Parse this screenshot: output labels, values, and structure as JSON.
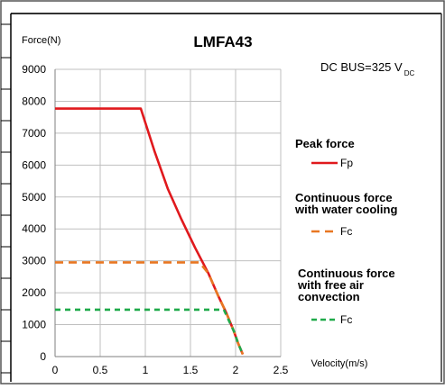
{
  "chart_data": {
    "type": "line",
    "title": "LMFA43",
    "ylabel": "Force(N)",
    "xlabel": "Velocity(m/s)",
    "annotation": {
      "text": "DC BUS=325 V",
      "subscript": "DC"
    },
    "xlim": [
      0,
      2.5
    ],
    "ylim": [
      0,
      9000
    ],
    "xticks": [
      0,
      0.5,
      1,
      1.5,
      2,
      2.5
    ],
    "yticks": [
      0,
      1000,
      2000,
      3000,
      4000,
      5000,
      6000,
      7000,
      8000,
      9000
    ],
    "xtick_labels": [
      "0",
      "0.5",
      "1",
      "1.5",
      "2",
      "2.5"
    ],
    "ytick_labels": [
      "0",
      "1000",
      "2000",
      "3000",
      "4000",
      "5000",
      "6000",
      "7000",
      "8000",
      "9000"
    ],
    "grid": true,
    "legend_position": "right",
    "series": [
      {
        "title_lines": [
          "Peak force"
        ],
        "name": "Fp",
        "color": "#e0191d",
        "dash": "solid",
        "points": [
          [
            0,
            7770
          ],
          [
            0.95,
            7770
          ],
          [
            1.1,
            6450
          ],
          [
            1.25,
            5250
          ],
          [
            1.4,
            4300
          ],
          [
            1.55,
            3420
          ],
          [
            1.7,
            2600
          ],
          [
            1.8,
            1950
          ],
          [
            1.9,
            1350
          ],
          [
            1.98,
            800
          ],
          [
            2.03,
            400
          ],
          [
            2.08,
            70
          ]
        ]
      },
      {
        "title_lines": [
          "Continuous force",
          "with water cooling"
        ],
        "name": "Fc",
        "color": "#e87722",
        "dash": "dash",
        "points": [
          [
            0,
            2950
          ],
          [
            1.6,
            2950
          ],
          [
            1.7,
            2600
          ],
          [
            1.8,
            1950
          ],
          [
            1.9,
            1350
          ],
          [
            1.98,
            800
          ],
          [
            2.03,
            400
          ],
          [
            2.08,
            70
          ]
        ]
      },
      {
        "title_lines": [
          "Continuous force",
          "with free air",
          "convection"
        ],
        "name": "Fc",
        "color": "#1faa4a",
        "dash": "dash",
        "points": [
          [
            0,
            1470
          ],
          [
            1.87,
            1470
          ],
          [
            1.93,
            1100
          ],
          [
            1.98,
            800
          ],
          [
            2.03,
            400
          ],
          [
            2.08,
            70
          ]
        ]
      }
    ]
  }
}
